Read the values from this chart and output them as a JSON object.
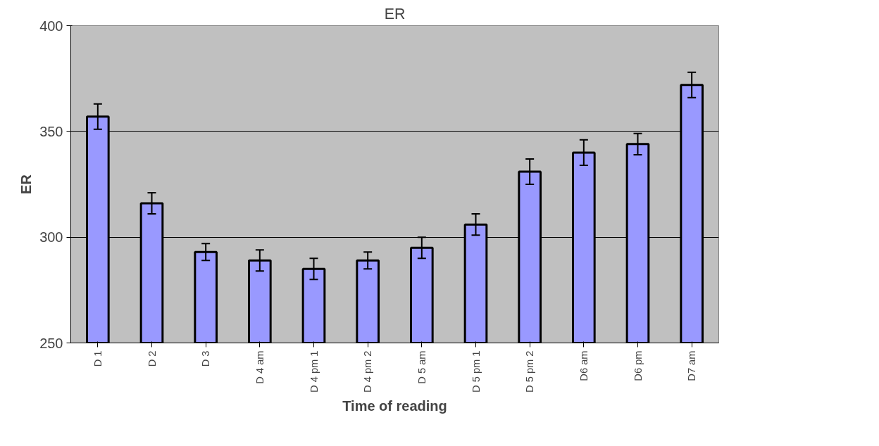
{
  "chart_data": {
    "type": "bar",
    "title": "ER",
    "xlabel": "Time of reading",
    "ylabel": "ER",
    "categories": [
      "D 1",
      "D 2",
      "D 3",
      "D 4 am",
      "D 4 pm 1",
      "D 4 pm 2",
      "D 5 am",
      "D 5 pm 1",
      "D 5 pm 2",
      "D6 am",
      "D6 pm",
      "D7 am"
    ],
    "values": [
      357,
      316,
      293,
      289,
      285,
      289,
      295,
      306,
      331,
      340,
      344,
      372
    ],
    "errors": [
      6,
      5,
      4,
      5,
      5,
      4,
      5,
      5,
      6,
      6,
      5,
      6
    ],
    "color": "#9999ff",
    "ylim": [
      250,
      400
    ],
    "yticks": [
      250,
      300,
      350,
      400
    ],
    "grid": "y"
  }
}
